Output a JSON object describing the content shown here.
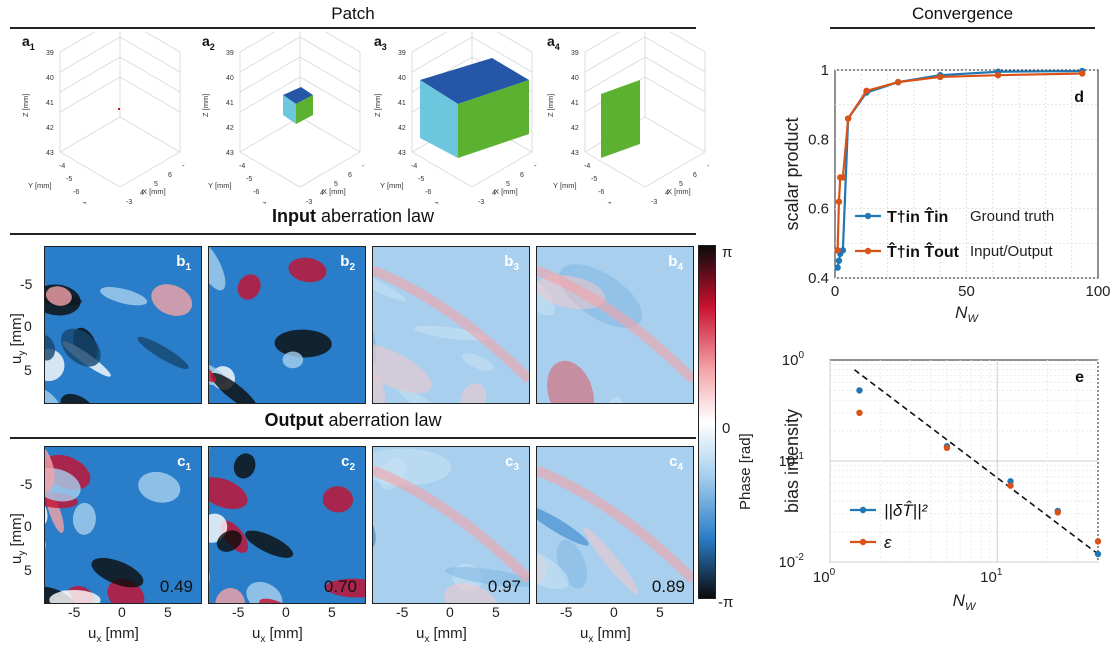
{
  "headers": {
    "patch": "Patch",
    "convergence": "Convergence"
  },
  "sections": {
    "input_bold": "Input",
    "input_rest": " aberration law",
    "output_bold": "Output",
    "output_rest": " aberration law"
  },
  "cube_panels": [
    {
      "id": "a",
      "sub": "1",
      "fill": "point"
    },
    {
      "id": "a",
      "sub": "2",
      "fill": "small-cube"
    },
    {
      "id": "a",
      "sub": "3",
      "fill": "large-cube"
    },
    {
      "id": "a",
      "sub": "4",
      "fill": "plane"
    }
  ],
  "cube_axes": {
    "z_label": "Z [mm]",
    "y_label": "Y [mm]",
    "x_label": "X [mm]",
    "z_ticks": [
      "39",
      "40",
      "41",
      "42",
      "43"
    ],
    "y_ticks": [
      "-7",
      "-6",
      "-5",
      "-4"
    ],
    "x_ticks": [
      "-3",
      "4",
      "5",
      "6",
      "-7"
    ]
  },
  "input_panels": [
    {
      "id": "b",
      "sub": "1"
    },
    {
      "id": "b",
      "sub": "2"
    },
    {
      "id": "b",
      "sub": "3"
    },
    {
      "id": "b",
      "sub": "4"
    }
  ],
  "output_panels": [
    {
      "id": "c",
      "sub": "1",
      "value": "0.49"
    },
    {
      "id": "c",
      "sub": "2",
      "value": "0.70"
    },
    {
      "id": "c",
      "sub": "3",
      "value": "0.97"
    },
    {
      "id": "c",
      "sub": "4",
      "value": "0.89"
    }
  ],
  "map_axes": {
    "y_ticks": [
      "-5",
      "0",
      "5"
    ],
    "x_ticks": [
      "-5",
      "0",
      "5"
    ],
    "ylabel_main": "u",
    "ylabel_sub": "y",
    "ylabel_unit": " [mm]",
    "xlabel_main": "u",
    "xlabel_sub": "x",
    "xlabel_unit": " [mm]"
  },
  "colorbar": {
    "top": "π",
    "mid": "0",
    "bottom": "-π",
    "title": "Phase [rad]",
    "colors": [
      "#0b0b0b",
      "#c8102e",
      "#f4a3a8",
      "#ffffff",
      "#a8d0ee",
      "#2a7dc8",
      "#0b0b0b"
    ]
  },
  "chart_data": [
    {
      "type": "line",
      "panel": "d",
      "ylabel": "scalar product",
      "xlabel": "N",
      "xlabel_sub": "W",
      "xlim": [
        0,
        100
      ],
      "ylim": [
        0.4,
        1
      ],
      "xticks": [
        "0",
        "50",
        "100"
      ],
      "yticks": [
        "0.4",
        "0.6",
        "0.8",
        "1"
      ],
      "grid": true,
      "legend_position": "lower-right",
      "series": [
        {
          "name": "Ground truth",
          "legend_math": "T†in T̂in",
          "color": "#1f77b4",
          "x": [
            1,
            1.5,
            2,
            3,
            5,
            12,
            24,
            40,
            62,
            94
          ],
          "y": [
            0.43,
            0.45,
            0.47,
            0.48,
            0.86,
            0.935,
            0.965,
            0.985,
            0.995,
            0.997
          ]
        },
        {
          "name": "Input/Output",
          "legend_math": "T̂†in T̂out",
          "color": "#d95319",
          "x": [
            1,
            1.5,
            2,
            3,
            5,
            12,
            24,
            40,
            62,
            94
          ],
          "y": [
            0.48,
            0.62,
            0.69,
            0.69,
            0.86,
            0.94,
            0.965,
            0.98,
            0.985,
            0.99
          ]
        }
      ]
    },
    {
      "type": "scatter",
      "panel": "e",
      "ylabel": "bias intensity",
      "xlabel": "N",
      "xlabel_sub": "W",
      "xscale": "log",
      "yscale": "log",
      "xlim": [
        1,
        40
      ],
      "ylim": [
        0.01,
        1
      ],
      "xticks": [
        "10^0",
        "10^1"
      ],
      "yticks": [
        "10^-2",
        "10^-1",
        "10^0"
      ],
      "grid": true,
      "legend_position": "lower-left",
      "fit_line": {
        "style": "dashed",
        "x": [
          1.4,
          40
        ],
        "y": [
          0.8,
          0.012
        ]
      },
      "series": [
        {
          "name": "||δT̂||²",
          "color": "#1f77b4",
          "x": [
            1.5,
            5,
            12,
            23,
            40
          ],
          "y": [
            0.5,
            0.14,
            0.063,
            0.032,
            0.012
          ]
        },
        {
          "name": "ε",
          "color": "#d95319",
          "x": [
            1.5,
            5,
            12,
            23,
            40
          ],
          "y": [
            0.3,
            0.135,
            0.057,
            0.031,
            0.016
          ]
        }
      ]
    }
  ]
}
